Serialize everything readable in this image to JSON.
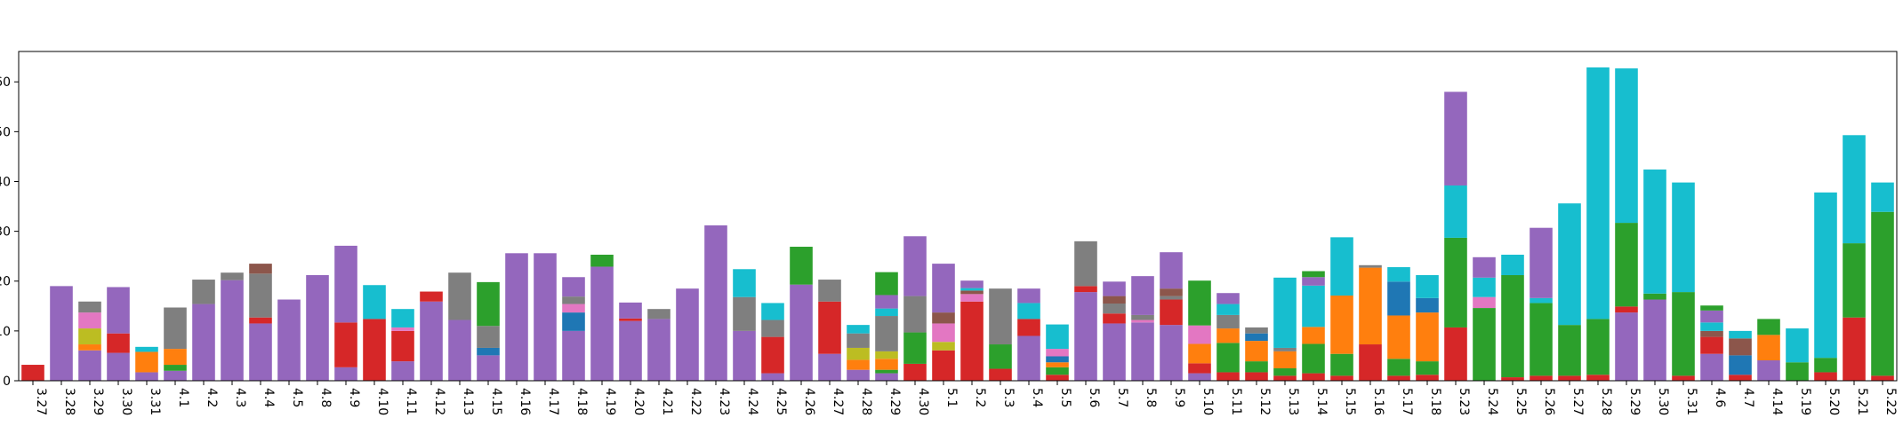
{
  "chart_data": {
    "type": "stacked_bar",
    "categories": [
      "3.27",
      "3.28",
      "3.29",
      "3.30",
      "3.31",
      "4.1",
      "4.2",
      "4.3",
      "4.4",
      "4.5",
      "4.8",
      "4.9",
      "4.10",
      "4.11",
      "4.12",
      "4.13",
      "4.15",
      "4.16",
      "4.17",
      "4.18",
      "4.19",
      "4.20",
      "4.21",
      "4.22",
      "4.23",
      "4.24",
      "4.25",
      "4.26",
      "4.27",
      "4.28",
      "4.29",
      "4.30",
      "5.1",
      "5.2",
      "5.3",
      "5.4",
      "5.5",
      "5.6",
      "5.7",
      "5.8",
      "5.9",
      "5.10",
      "5.11",
      "5.12",
      "5.13",
      "5.14",
      "5.15",
      "5.16",
      "5.17",
      "5.18",
      "5.23",
      "5.24",
      "5.25",
      "5.26",
      "5.27",
      "5.28",
      "5.29",
      "5.30",
      "5.31",
      "4.6",
      "4.7",
      "4.14",
      "5.19",
      "5.20",
      "5.21",
      "5.22"
    ],
    "series": [
      {
        "color": "#9467bd",
        "values": [
          0,
          19,
          6.1,
          5.6,
          1.7,
          2.0,
          15.4,
          20.2,
          11.5,
          16.3,
          21.2,
          2.7,
          0,
          3.9,
          15.9,
          12.2,
          5.1,
          25.6,
          25.6,
          10,
          22.9,
          12,
          12.4,
          18.5,
          31.2,
          10,
          1.5,
          19.3,
          5.4,
          2.2,
          1.5,
          0,
          0,
          0,
          0,
          9,
          0,
          17.8,
          11.5,
          11.7,
          11.2,
          1.5,
          0,
          0,
          0,
          0,
          0,
          0,
          0,
          0,
          0,
          0,
          0,
          0,
          0,
          0,
          13.7,
          16.3,
          0,
          5.4,
          0,
          4.1,
          0,
          0,
          0,
          0
        ]
      },
      {
        "color": "#d62728",
        "values": [
          3.2,
          0,
          0,
          3.9,
          0,
          0,
          0,
          0,
          1.2,
          0,
          0,
          9,
          12.4,
          6.1,
          2,
          0,
          0,
          0,
          0,
          0,
          0,
          0.5,
          0,
          0,
          0,
          0,
          7.3,
          0,
          10.5,
          0,
          0,
          3.4,
          6.1,
          15.9,
          2.4,
          3.4,
          1.2,
          1.2,
          2,
          0,
          5.1,
          2,
          1.7,
          1.7,
          1,
          1.5,
          1,
          7.3,
          1,
          1.2,
          10.7,
          0,
          0.7,
          1,
          1,
          1.2,
          1.2,
          0,
          1,
          3.4,
          1.2,
          0,
          0,
          1.7,
          12.7,
          1
        ]
      },
      {
        "color": "#2ca02c",
        "values": [
          0,
          0,
          0,
          0,
          0,
          1.2,
          0,
          0,
          0,
          0,
          0,
          0,
          0,
          0,
          0,
          0,
          0,
          0,
          0,
          0,
          2.4,
          0,
          0,
          0,
          0,
          0,
          0,
          7.6,
          0,
          0,
          0.7,
          6.3,
          0,
          0,
          4.9,
          0,
          1.5,
          0,
          0,
          0,
          0,
          0,
          5.9,
          2.2,
          1.5,
          5.9,
          4.4,
          0,
          3.4,
          2.7,
          18,
          14.6,
          20.5,
          14.6,
          10.2,
          11.2,
          16.8,
          1.2,
          16.8,
          0,
          0,
          0,
          3.7,
          2.9,
          14.9,
          32.9
        ]
      },
      {
        "color": "#ff7f0e",
        "values": [
          0,
          0,
          1.2,
          0,
          4.1,
          3.2,
          0,
          0,
          0,
          0,
          0,
          0,
          0,
          0,
          0,
          0,
          0,
          0,
          0,
          0,
          0,
          0,
          0,
          0,
          0,
          0,
          0,
          0,
          0,
          2.0,
          2.2,
          0,
          0,
          0,
          0,
          0,
          1.0,
          0,
          0,
          0,
          0,
          3.9,
          2.9,
          4.1,
          3.4,
          3.4,
          11.7,
          15.4,
          8.7,
          9.8,
          0,
          0,
          0,
          0,
          0,
          0,
          0,
          0,
          0,
          0,
          0,
          5.1,
          0,
          0,
          0,
          0
        ]
      },
      {
        "color": "#1f77b4",
        "values": [
          0,
          0,
          0,
          0,
          0,
          0,
          0,
          0,
          0,
          0,
          0,
          0,
          0,
          0,
          0,
          0,
          1.5,
          0,
          0,
          3.7,
          0,
          0,
          0,
          0,
          0,
          0,
          0,
          0,
          0,
          0,
          0,
          0,
          0,
          0,
          0,
          0,
          1.2,
          0,
          0,
          0,
          0,
          0,
          0,
          1.5,
          0,
          0,
          0,
          0,
          6.8,
          2.9,
          0,
          0,
          0,
          0,
          0,
          0,
          0,
          0,
          0,
          0,
          3.9,
          0,
          0,
          0,
          0,
          0
        ]
      },
      {
        "color": "#bcbd22",
        "values": [
          0,
          0,
          3.2,
          0,
          0,
          0,
          0,
          0,
          0,
          0,
          0,
          0,
          0,
          0,
          0,
          0,
          0,
          0,
          0,
          0,
          0,
          0,
          0,
          0,
          0,
          0,
          0,
          0,
          0,
          2.4,
          1.5,
          0,
          1.7,
          0,
          0,
          0,
          0,
          0,
          0,
          0,
          0,
          0,
          0,
          0,
          0,
          0,
          0,
          0,
          0,
          0,
          0,
          0,
          0,
          0,
          0,
          0,
          0,
          0,
          0,
          0,
          0,
          0,
          0,
          0,
          0,
          0
        ]
      },
      {
        "color": "#e377c2",
        "values": [
          0,
          0,
          3.2,
          0,
          0,
          0,
          0,
          0,
          0,
          0,
          0,
          0,
          0,
          0.7,
          0,
          0,
          0,
          0,
          0,
          1.7,
          0,
          0,
          0,
          0,
          0,
          0,
          0,
          0,
          0,
          0,
          0,
          0,
          3.7,
          1.5,
          0,
          0,
          1.5,
          0,
          0,
          0.5,
          0,
          3.7,
          0,
          0,
          0,
          0,
          0,
          0,
          0,
          0,
          0,
          2.2,
          0,
          0,
          0,
          0,
          0,
          0,
          0,
          0,
          0,
          0,
          0,
          0,
          0,
          0
        ]
      },
      {
        "color": "#7f7f7f",
        "values": [
          0,
          0,
          2.2,
          0,
          0,
          8.3,
          4.9,
          1.5,
          8.8,
          0,
          0,
          0,
          0,
          0,
          0,
          9.5,
          4.4,
          0,
          0,
          1.5,
          0,
          0,
          2.0,
          0,
          0,
          6.8,
          3.4,
          0,
          4.4,
          2.9,
          7.1,
          7.3,
          0,
          0,
          11.2,
          0,
          0,
          9.0,
          2.0,
          1.0,
          0.7,
          0,
          2.7,
          1.2,
          0.7,
          0,
          0,
          0.5,
          0,
          0,
          0,
          0,
          0,
          0,
          0,
          0,
          0,
          0,
          0,
          0,
          0,
          0,
          0,
          0,
          0,
          0
        ]
      },
      {
        "color": "#8c564b",
        "values": [
          0,
          0,
          0,
          0,
          0,
          0,
          0,
          0,
          2.0,
          0,
          0,
          0,
          0,
          0,
          0,
          0,
          0,
          0,
          0,
          0,
          0,
          0,
          0,
          0,
          0,
          0,
          0,
          0,
          0,
          0,
          0,
          0,
          2.2,
          0.7,
          0,
          0,
          0,
          0,
          1.5,
          0,
          1.5,
          0,
          0,
          0,
          0,
          0,
          0,
          0,
          0,
          0,
          0,
          0,
          0,
          0,
          0,
          0,
          0,
          0,
          0,
          1.2,
          3.4,
          0,
          0,
          0,
          0,
          0
        ]
      },
      {
        "color": "#17becf",
        "values": [
          0,
          0,
          0,
          0,
          1.0,
          0,
          0,
          0,
          0,
          0,
          0,
          0,
          6.8,
          3.7,
          0,
          0,
          0,
          0,
          0,
          0,
          0,
          0,
          0,
          0,
          0,
          5.6,
          3.4,
          0,
          0,
          1.7,
          1.5,
          0,
          0,
          0.5,
          0,
          3.2,
          4.9,
          0,
          0,
          0,
          0,
          0,
          2.2,
          0,
          14.1,
          8.3,
          11.7,
          0,
          2.9,
          4.6,
          10.5,
          3.9,
          4.1,
          1.0,
          24.4,
          50.5,
          31.0,
          24.9,
          22.0,
          1.7,
          1.5,
          0,
          6.8,
          33.2,
          21.7,
          5.9
        ]
      },
      {
        "color": "#9467bd",
        "values": [
          0,
          0,
          0,
          9.3,
          0,
          0,
          0,
          0,
          0,
          0,
          0,
          15.4,
          0,
          0,
          0,
          0,
          0,
          0,
          0,
          3.9,
          0,
          3.2,
          0,
          0,
          0,
          0,
          0,
          0,
          0,
          0,
          2.7,
          12.0,
          9.8,
          1.5,
          0,
          2.9,
          0,
          0,
          2.9,
          7.8,
          7.3,
          0,
          2.2,
          0,
          0,
          1.7,
          0,
          0,
          0,
          0,
          18.8,
          4.1,
          0,
          14.1,
          0,
          0,
          0,
          0,
          0,
          2.4,
          0,
          0,
          0,
          0,
          0,
          0
        ]
      },
      {
        "color": "#2ca02c",
        "values": [
          0,
          0,
          0,
          0,
          0,
          0,
          0,
          0,
          0,
          0,
          0,
          0,
          0,
          0,
          0,
          0,
          8.8,
          0,
          0,
          0,
          0,
          0,
          0,
          0,
          0,
          0,
          0,
          0,
          0,
          0,
          4.6,
          0,
          0,
          0,
          0,
          0,
          0,
          0,
          0,
          0,
          0,
          9.0,
          0,
          0,
          0,
          1.2,
          0,
          0,
          0,
          0,
          0,
          0,
          0,
          0,
          0,
          0,
          0,
          0,
          0,
          1.0,
          0,
          3.2,
          0,
          0,
          0,
          0
        ]
      }
    ],
    "ylim": [
      0,
      66.1
    ],
    "yticks": [
      0,
      10,
      20,
      30,
      40,
      50,
      60
    ]
  }
}
